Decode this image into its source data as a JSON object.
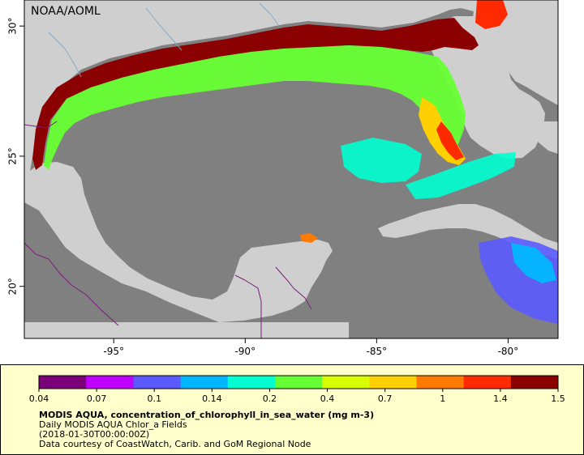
{
  "map": {
    "source_label": "NOAA/AOML",
    "x_ticks": [
      {
        "value": -95,
        "label": "-95°"
      },
      {
        "value": -90,
        "label": "-90°"
      },
      {
        "value": -85,
        "label": "-85°"
      },
      {
        "value": -80,
        "label": "-80°"
      }
    ],
    "y_ticks": [
      {
        "value": 30,
        "label": "30°"
      },
      {
        "value": 25,
        "label": "25°"
      },
      {
        "value": 20,
        "label": "20°"
      }
    ],
    "lon_range": [
      -98.4,
      -78.1
    ],
    "lat_range": [
      18.0,
      31.0
    ],
    "background": "#808080",
    "land_color": "#cfcfcf"
  },
  "legend": {
    "ticks": [
      "0.04",
      "0.07",
      "0.1",
      "0.14",
      "0.2",
      "0.4",
      "0.7",
      "1",
      "1.4",
      "1.5"
    ],
    "title": "MODIS AQUA, concentration_of_chlorophyll_in_sea_water (mg m-3)",
    "line2": "Daily MODIS AQUA Chlor_a Fields",
    "line3": "(2018-01-30T00:00:00Z)",
    "line4": "Data courtesy of CoastWatch, Carib. and GoM Regional Node",
    "colors": [
      "#7a007a",
      "#c000ff",
      "#5a5aff",
      "#00b7ff",
      "#00ffd0",
      "#66ff33",
      "#d8ff00",
      "#ffd000",
      "#ff7a00",
      "#ff2a00",
      "#8b0000"
    ]
  }
}
